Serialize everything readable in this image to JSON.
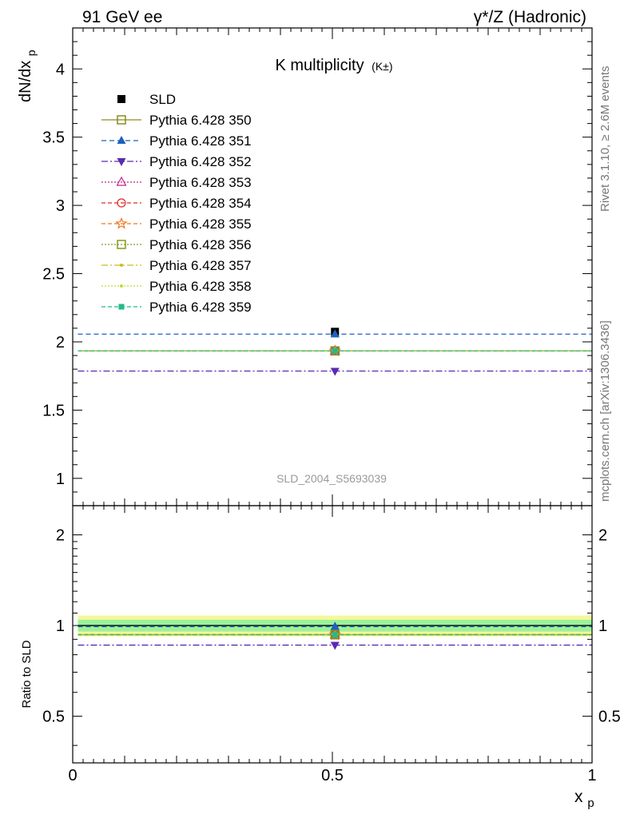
{
  "header": {
    "left": "91 GeV ee",
    "right": "γ*/Z (Hadronic)"
  },
  "side": {
    "rivet": "Rivet 3.1.10, ≥ 2.6M events",
    "mcplots": "mcplots.cern.ch [arXiv:1306.3436]"
  },
  "watermark": "SLD_2004_S5693039",
  "chart_data": [
    {
      "type": "line",
      "title": "K multiplicity",
      "title_sub": "(K±)",
      "ylabel": "dN/dx",
      "ylabel_sub": "p",
      "xlim": [
        0,
        1
      ],
      "ylim": [
        0.8,
        4.3
      ],
      "yticks": [
        1,
        1.5,
        2,
        2.5,
        3,
        3.5,
        4
      ],
      "ytick_labels": [
        "1",
        "1.5",
        "2",
        "2.5",
        "3",
        "3.5",
        "4"
      ],
      "data": {
        "name": "SLD",
        "x": 0.505,
        "y": 2.074,
        "xrange": [
          0.01,
          1.0
        ],
        "color": "#000000",
        "marker": "square"
      },
      "series": [
        {
          "name": "Pythia 6.428 350",
          "y": 1.934,
          "color": "#8c8c22",
          "dash": "",
          "marker": "open-square"
        },
        {
          "name": "Pythia 6.428 351",
          "y": 2.057,
          "color": "#1f5fbf",
          "dash": "6,4",
          "marker": "triangle-up"
        },
        {
          "name": "Pythia 6.428 352",
          "y": 1.786,
          "color": "#5a2ab0",
          "dash": "8,3,2,3",
          "marker": "triangle-down"
        },
        {
          "name": "Pythia 6.428 353",
          "y": 1.934,
          "color": "#c2248c",
          "dash": "2,2",
          "marker": "open-triangle"
        },
        {
          "name": "Pythia 6.428 354",
          "y": 1.934,
          "color": "#dd2a2a",
          "dash": "5,3",
          "marker": "open-circle"
        },
        {
          "name": "Pythia 6.428 355",
          "y": 1.934,
          "color": "#ee7722",
          "dash": "5,3",
          "marker": "open-star"
        },
        {
          "name": "Pythia 6.428 356",
          "y": 1.934,
          "color": "#889922",
          "dash": "2,2",
          "marker": "open-square"
        },
        {
          "name": "Pythia 6.428 357",
          "y": 1.934,
          "color": "#ccbb22",
          "dash": "8,3,2,3",
          "marker": "small-dot"
        },
        {
          "name": "Pythia 6.428 358",
          "y": 1.934,
          "color": "#bbdd33",
          "dash": "2,2",
          "marker": "small-dot"
        },
        {
          "name": "Pythia 6.428 359",
          "y": 1.934,
          "color": "#22bb88",
          "dash": "5,3",
          "marker": "filled-square"
        }
      ],
      "legend_position": "top-left"
    },
    {
      "type": "line",
      "ylabel": "Ratio to SLD",
      "xlabel": "x",
      "xlabel_sub": "p",
      "xlim": [
        0,
        1
      ],
      "xticks": [
        0,
        0.5,
        1
      ],
      "xtick_labels": [
        "0",
        "0.5",
        "1"
      ],
      "ylim": [
        0.35,
        2.5
      ],
      "yscale": "log",
      "yticks": [
        0.5,
        1,
        2
      ],
      "ytick_labels": [
        "0.5",
        "1",
        "2"
      ],
      "band_outer": [
        0.92,
        1.08
      ],
      "band_inner": [
        0.955,
        1.045
      ],
      "band_outer_color": "#f4f89a",
      "band_inner_color": "#9cf29a",
      "ratios": [
        0.9325,
        0.9918,
        0.8611,
        0.9325,
        0.9325,
        0.9325,
        0.9325,
        0.9325,
        0.9325,
        0.9325
      ]
    }
  ]
}
